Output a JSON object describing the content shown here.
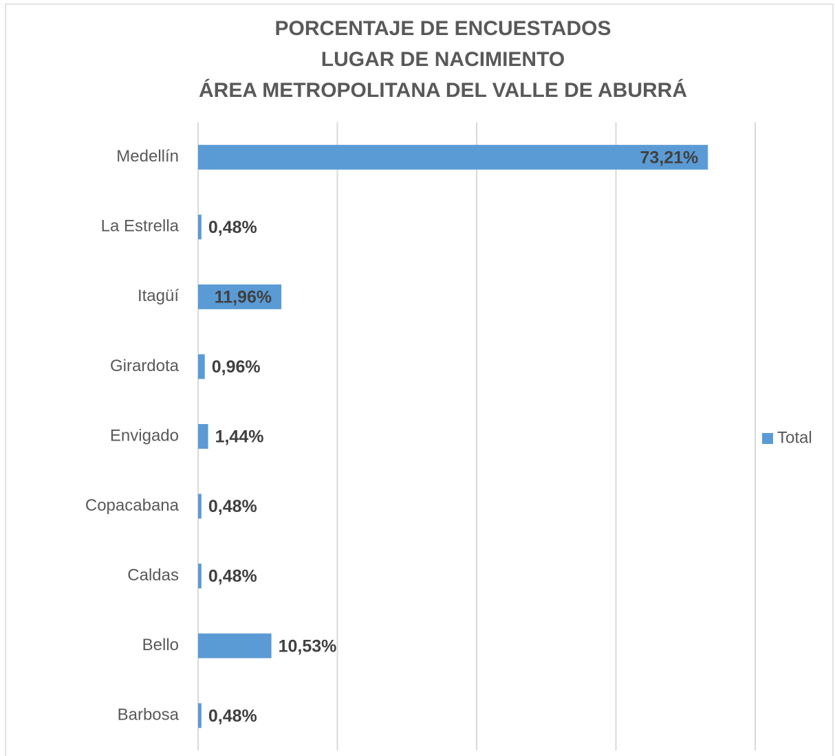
{
  "chart_data": {
    "type": "bar",
    "orientation": "horizontal",
    "title": [
      "PORCENTAJE DE ENCUESTADOS",
      "LUGAR DE NACIMIENTO",
      "ÁREA METROPOLITANA DEL VALLE DE ABURRÁ"
    ],
    "categories": [
      "Medellín",
      "La Estrella",
      "Itagüí",
      "Girardota",
      "Envigado",
      "Copacabana",
      "Caldas",
      "Bello",
      "Barbosa"
    ],
    "series": [
      {
        "name": "Total",
        "color": "#5b9bd5",
        "values": [
          73.21,
          0.48,
          11.96,
          0.96,
          1.44,
          0.48,
          0.48,
          10.53,
          0.48
        ],
        "value_labels": [
          "73,21%",
          "0,48%",
          "11,96%",
          "0,96%",
          "1,44%",
          "0,48%",
          "0,48%",
          "10,53%",
          "0,48%"
        ]
      }
    ],
    "xlim": [
      0,
      80
    ],
    "xticks": [
      0,
      20,
      40,
      60,
      80
    ],
    "grid": true,
    "legend": "right"
  }
}
